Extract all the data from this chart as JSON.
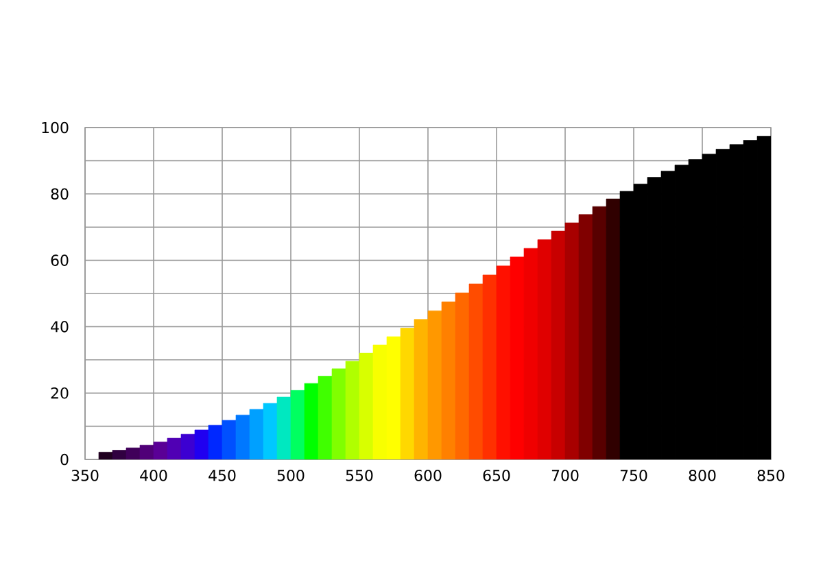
{
  "chart_data": {
    "type": "bar",
    "xlim": [
      350,
      850
    ],
    "ylim": [
      0,
      100
    ],
    "xticks": [
      350,
      400,
      450,
      500,
      550,
      600,
      650,
      700,
      750,
      800,
      850
    ],
    "yticks": [
      0,
      {
        "value": 10,
        "label": null
      },
      20,
      {
        "value": 30,
        "label": null
      },
      40,
      {
        "value": 50,
        "label": null
      },
      60,
      {
        "value": 70,
        "label": null
      },
      80,
      {
        "value": 90,
        "label": null
      },
      100
    ],
    "grid": true,
    "x": [
      365,
      375,
      385,
      395,
      405,
      415,
      425,
      435,
      445,
      455,
      465,
      475,
      485,
      495,
      505,
      515,
      525,
      535,
      545,
      555,
      565,
      575,
      585,
      595,
      605,
      615,
      625,
      635,
      645,
      655,
      665,
      675,
      685,
      695,
      705,
      715,
      725,
      735,
      745,
      755,
      765,
      775,
      785,
      795,
      805,
      815,
      825,
      835,
      845
    ],
    "values": [
      2.2,
      2.8,
      3.5,
      4.3,
      5.3,
      6.4,
      7.6,
      8.9,
      10.3,
      11.8,
      13.4,
      15.1,
      16.9,
      18.8,
      20.8,
      22.9,
      25.1,
      27.3,
      29.6,
      32.0,
      34.5,
      37.0,
      39.6,
      42.2,
      44.8,
      47.5,
      50.2,
      52.9,
      55.6,
      58.3,
      61.0,
      63.6,
      66.2,
      68.8,
      71.3,
      73.8,
      76.2,
      78.5,
      80.8,
      83.0,
      85.0,
      86.9,
      88.7,
      90.4,
      92.0,
      93.5,
      94.9,
      96.2,
      97.4
    ],
    "colors": [
      "#200020",
      "#300040",
      "#40005a",
      "#500078",
      "#5a0096",
      "#5000b4",
      "#3c00d2",
      "#2000f0",
      "#0028ff",
      "#0050ff",
      "#0078ff",
      "#00a0ff",
      "#00c8ff",
      "#00e8c0",
      "#00ff60",
      "#00ff00",
      "#40ff00",
      "#80ff00",
      "#b0ff00",
      "#d8ff00",
      "#f8ff00",
      "#ffff00",
      "#ffd800",
      "#ffb400",
      "#ff9800",
      "#ff8000",
      "#ff6800",
      "#ff4c00",
      "#ff3000",
      "#ff1000",
      "#ff0000",
      "#f00000",
      "#e00000",
      "#c80000",
      "#a80000",
      "#800000",
      "#580000",
      "#300000",
      "#000000",
      "#000000",
      "#000000",
      "#000000",
      "#000000",
      "#000000",
      "#000000",
      "#000000",
      "#000000",
      "#000000",
      "#000000"
    ]
  }
}
